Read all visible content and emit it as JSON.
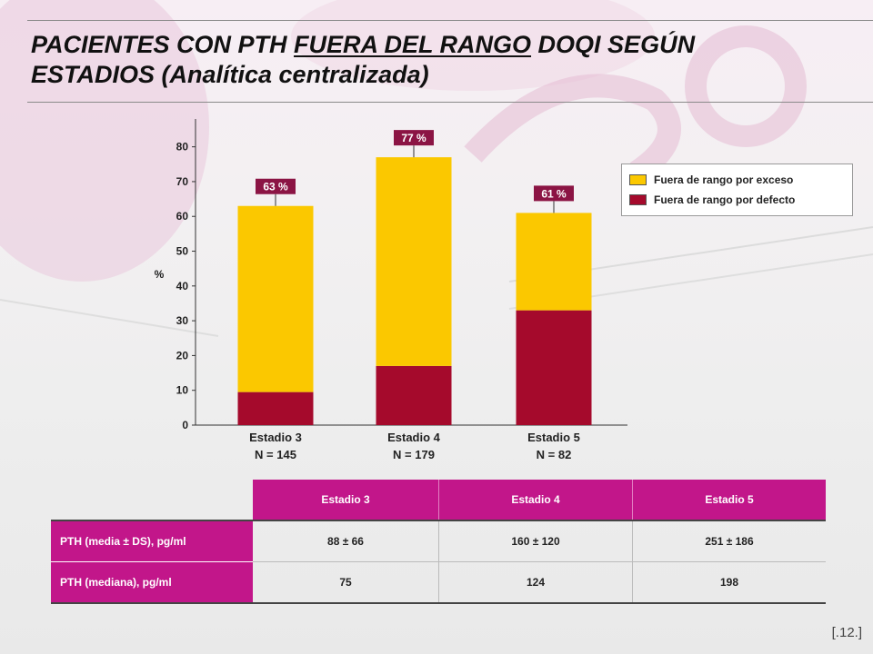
{
  "title": {
    "part1": "PACIENTES CON PTH ",
    "underlined": "FUERA DEL RANGO",
    "part2": " DOQI SEGÚN",
    "line2": "ESTADIOS (Analítica centralizada)"
  },
  "chart_data": {
    "type": "bar",
    "stacked": true,
    "categories": [
      "Estadio 3",
      "Estadio 4",
      "Estadio 5"
    ],
    "category_n": [
      "N = 145",
      "N = 179",
      "N = 82"
    ],
    "series": [
      {
        "name": "Fuera de rango por defecto",
        "color": "#a50a2c",
        "values": [
          9.5,
          17,
          33
        ]
      },
      {
        "name": "Fuera de rango por exceso",
        "color": "#fbc800",
        "values": [
          53.5,
          60,
          28
        ]
      }
    ],
    "totals": [
      63,
      77,
      61
    ],
    "total_labels": [
      "63 %",
      "77 %",
      "61 %"
    ],
    "ylabel": "%",
    "ylim": [
      0,
      88
    ],
    "yticks": [
      0,
      10,
      20,
      30,
      40,
      50,
      60,
      70,
      80
    ],
    "legend_position": "right",
    "grid": false
  },
  "legend": {
    "items": [
      {
        "label": "Fuera de rango por exceso",
        "color": "#fbc800"
      },
      {
        "label": "Fuera de rango por defecto",
        "color": "#a50a2c"
      }
    ]
  },
  "table": {
    "headers": [
      "Estadio 3",
      "Estadio 4",
      "Estadio 5"
    ],
    "rows": [
      {
        "label": "PTH (media ± DS), pg/ml",
        "values": [
          "88 ± 66",
          "160 ± 120",
          "251 ± 186"
        ]
      },
      {
        "label": "PTH (mediana), pg/ml",
        "values": [
          "75",
          "124",
          "198"
        ]
      }
    ]
  },
  "page_number": "[.12.]",
  "colors": {
    "accent": "#c2168a",
    "excess": "#fbc800",
    "deficit": "#a50a2c",
    "label_box": "#8b1444"
  }
}
